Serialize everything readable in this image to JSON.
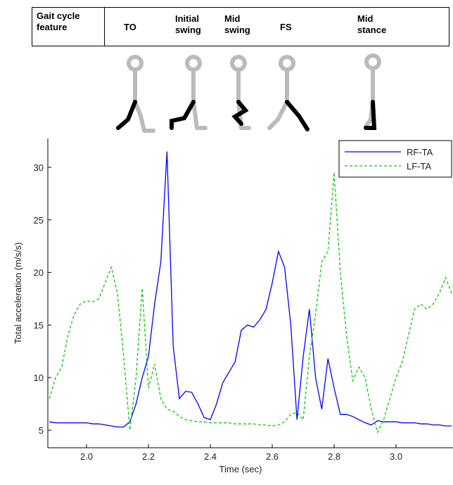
{
  "header": {
    "feature": "Gait cycle feature",
    "phases": [
      "TO",
      "Initial swing",
      "Mid swing",
      "FS",
      "Mid stance"
    ]
  },
  "chart_data": {
    "type": "line",
    "xlabel": "Time (sec)",
    "ylabel": "Total acceleration (m/s/s)",
    "xlim": [
      1.875,
      3.184
    ],
    "ylim": [
      3.33,
      32.74
    ],
    "xticks": [
      {
        "value": 2,
        "label": "2.0"
      },
      2.2,
      2.4,
      2.6,
      2.8,
      {
        "value": 3,
        "label": "3.0"
      }
    ],
    "yticks": [
      5,
      10,
      15,
      20,
      25,
      30
    ],
    "legend": "upper right",
    "x": [
      1.88,
      1.9,
      1.92,
      1.94,
      1.96,
      1.98,
      2.0,
      2.02,
      2.04,
      2.06,
      2.08,
      2.1,
      2.12,
      2.14,
      2.16,
      2.18,
      2.2,
      2.22,
      2.24,
      2.26,
      2.28,
      2.3,
      2.32,
      2.34,
      2.36,
      2.38,
      2.4,
      2.42,
      2.44,
      2.46,
      2.48,
      2.5,
      2.52,
      2.54,
      2.56,
      2.58,
      2.6,
      2.62,
      2.64,
      2.66,
      2.68,
      2.7,
      2.72,
      2.74,
      2.76,
      2.78,
      2.8,
      2.82,
      2.84,
      2.86,
      2.88,
      2.9,
      2.92,
      2.94,
      2.96,
      2.98,
      3.0,
      3.02,
      3.04,
      3.06,
      3.08,
      3.1,
      3.12,
      3.14,
      3.16,
      3.18
    ],
    "series": [
      {
        "name": "RF-TA",
        "color": "#0000ff",
        "dash": "solid",
        "values": [
          5.8,
          5.7,
          5.7,
          5.7,
          5.7,
          5.7,
          5.7,
          5.6,
          5.6,
          5.5,
          5.4,
          5.3,
          5.3,
          5.8,
          7.5,
          10,
          12,
          17,
          21,
          31.5,
          13,
          8,
          8.7,
          8.6,
          7.5,
          6.2,
          6,
          7.5,
          9.5,
          10.5,
          11.5,
          14.5,
          15,
          14.8,
          15.5,
          16.5,
          19,
          22,
          20.5,
          15,
          6,
          12,
          16.5,
          10,
          7,
          11.8,
          9,
          6.5,
          6.5,
          6.3,
          6,
          5.7,
          5.5,
          5.9,
          5.8,
          5.8,
          5.8,
          5.7,
          5.7,
          5.7,
          5.6,
          5.6,
          5.5,
          5.5,
          5.4,
          5.4
        ]
      },
      {
        "name": "LF-TA",
        "color": "#00cc00",
        "dash": "dashed",
        "values": [
          8,
          10,
          11,
          14,
          16,
          17,
          17.3,
          17.2,
          17.5,
          19,
          20.5,
          18,
          12,
          5,
          10,
          18.5,
          9,
          11.3,
          8,
          7,
          6.8,
          6.3,
          6,
          5.9,
          5.8,
          5.8,
          5.7,
          5.7,
          5.7,
          5.7,
          5.6,
          5.6,
          5.6,
          5.6,
          5.5,
          5.5,
          5.4,
          5.5,
          5.8,
          6.5,
          6.7,
          6,
          12,
          16,
          21,
          22,
          29.5,
          20,
          14,
          9.7,
          11,
          10,
          7,
          4.8,
          6,
          8,
          10,
          11.5,
          14,
          16.5,
          17,
          16.5,
          17,
          18,
          19.5,
          18
        ]
      }
    ]
  }
}
